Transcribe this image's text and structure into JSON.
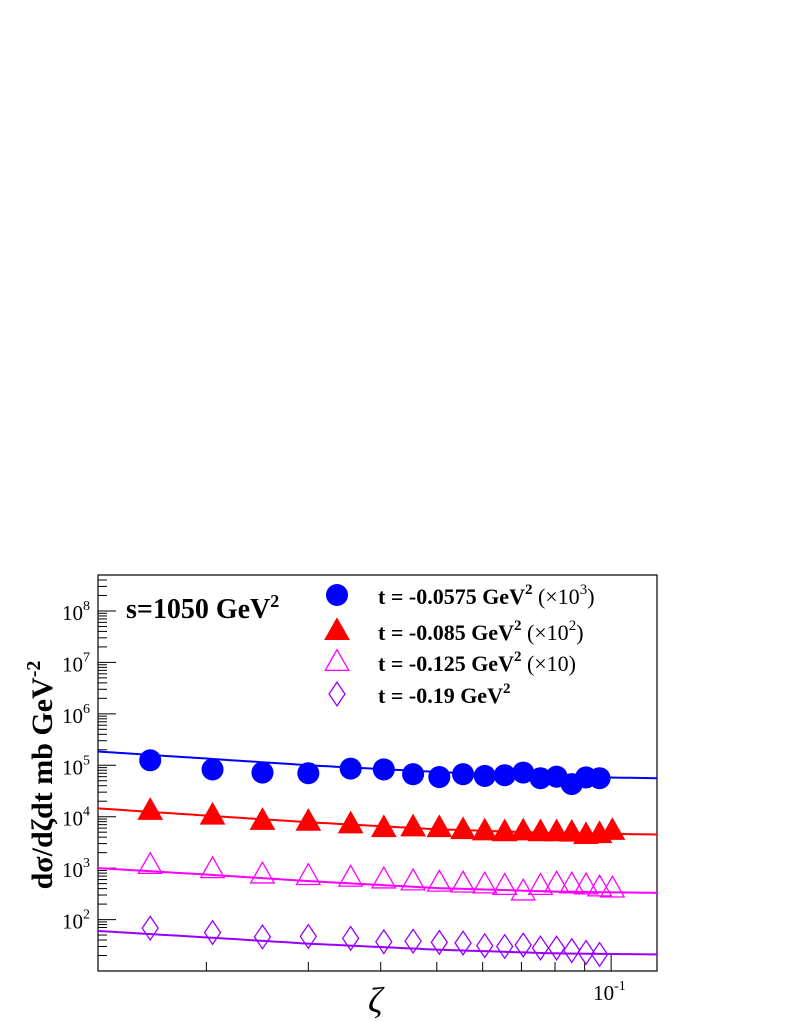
{
  "chart_data": {
    "type": "scatter",
    "annotation": "s=1050 GeV",
    "annotation_sup": "2",
    "xlabel": "ζ",
    "ylabel": "dσ/dζdt mb GeV",
    "ylabel_sup": "-2",
    "xscale": "log",
    "yscale": "log",
    "xlim": [
      0.013,
      0.12
    ],
    "ylim": [
      10,
      500000000
    ],
    "x_tick_label": {
      "base": "10",
      "exp": "-1",
      "value": 0.1
    },
    "y_tick_labels": [
      {
        "base": "10",
        "exp": "2",
        "value": 100
      },
      {
        "base": "10",
        "exp": "3",
        "value": 1000
      },
      {
        "base": "10",
        "exp": "4",
        "value": 10000
      },
      {
        "base": "10",
        "exp": "5",
        "value": 100000
      },
      {
        "base": "10",
        "exp": "6",
        "value": 1000000
      },
      {
        "base": "10",
        "exp": "7",
        "value": 10000000
      },
      {
        "base": "10",
        "exp": "8",
        "value": 100000000
      }
    ],
    "legend_position": "top-right",
    "series": [
      {
        "name": "t = -0.0575 GeV",
        "name_sup": "2",
        "scale_text": "(×10",
        "scale_sup": "3",
        "scale_close": ")",
        "marker": "filled-circle",
        "color": "#0000ff",
        "x": [
          0.016,
          0.0205,
          0.025,
          0.03,
          0.0355,
          0.0405,
          0.0455,
          0.0505,
          0.0555,
          0.0605,
          0.0655,
          0.0705,
          0.0755,
          0.0805,
          0.0855,
          0.0905,
          0.0955
        ],
        "y": [
          125000,
          83000,
          72000,
          70000,
          86000,
          83000,
          67000,
          59000,
          67000,
          62000,
          64000,
          72000,
          56000,
          60000,
          43000,
          58000,
          56000
        ],
        "model": {
          "x": [
            0.013,
            0.02,
            0.03,
            0.05,
            0.08,
            0.12
          ],
          "y": [
            185000,
            135000,
            100000,
            74000,
            60000,
            56000
          ]
        }
      },
      {
        "name": "t = -0.085 GeV",
        "name_sup": "2",
        "scale_text": "(×10",
        "scale_sup": "2",
        "scale_close": ")",
        "marker": "filled-triangle",
        "color": "#ff0000",
        "x": [
          0.016,
          0.0205,
          0.025,
          0.03,
          0.0355,
          0.0405,
          0.0455,
          0.0505,
          0.0555,
          0.0605,
          0.0655,
          0.0705,
          0.0755,
          0.0805,
          0.0855,
          0.0905,
          0.0955,
          0.1005
        ],
        "y": [
          13000,
          10500,
          8300,
          8000,
          7100,
          6000,
          6200,
          6000,
          5500,
          5200,
          5000,
          5200,
          5000,
          5000,
          4900,
          4400,
          4600,
          5300
        ],
        "model": {
          "x": [
            0.013,
            0.02,
            0.03,
            0.05,
            0.08,
            0.12
          ],
          "y": [
            14500,
            10500,
            7800,
            5700,
            4800,
            4500
          ]
        }
      },
      {
        "name": "t = -0.125 GeV",
        "name_sup": "2",
        "scale_text": "(×10)",
        "scale_sup": "",
        "scale_close": "",
        "marker": "open-triangle",
        "color": "#ff00ff",
        "x": [
          0.016,
          0.0205,
          0.025,
          0.03,
          0.0355,
          0.0405,
          0.0455,
          0.0505,
          0.0555,
          0.0605,
          0.0655,
          0.0705,
          0.0755,
          0.0805,
          0.0855,
          0.0905,
          0.0955,
          0.1005
        ],
        "y": [
          1150,
          950,
          750,
          700,
          650,
          600,
          550,
          520,
          500,
          480,
          450,
          350,
          450,
          500,
          480,
          460,
          420,
          400
        ],
        "model": {
          "x": [
            0.013,
            0.02,
            0.03,
            0.05,
            0.08,
            0.12
          ],
          "y": [
            1000,
            750,
            560,
            410,
            350,
            330
          ]
        }
      },
      {
        "name": "t = -0.19 GeV",
        "name_sup": "2",
        "scale_text": "",
        "scale_sup": "",
        "scale_close": "",
        "marker": "open-diamond",
        "color": "#9900ff",
        "x": [
          0.016,
          0.0205,
          0.025,
          0.03,
          0.0355,
          0.0405,
          0.0455,
          0.0505,
          0.0555,
          0.0605,
          0.0655,
          0.0705,
          0.0755,
          0.0805,
          0.0855,
          0.0905,
          0.0955
        ],
        "y": [
          68,
          56,
          46,
          47,
          43,
          37,
          38,
          36,
          35,
          31,
          30,
          32,
          28,
          28,
          25,
          23,
          21
        ],
        "model": {
          "x": [
            0.013,
            0.02,
            0.03,
            0.05,
            0.08,
            0.12
          ],
          "y": [
            60,
            45,
            34,
            26,
            22,
            21
          ]
        }
      }
    ]
  }
}
